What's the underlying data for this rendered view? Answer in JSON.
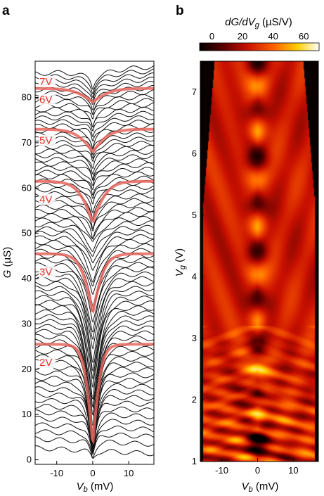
{
  "chart_data": [
    {
      "type": "line",
      "panel_label": "a",
      "xlabel_main": "V",
      "xlabel_sub": "b",
      "xlabel_unit": " (mV)",
      "ylabel_main": "G",
      "ylabel_unit": " (µS)",
      "xlim": [
        -16,
        17
      ],
      "ylim": [
        -1,
        88
      ],
      "x_ticks": [
        -10,
        0,
        10
      ],
      "y_ticks": [
        0,
        10,
        20,
        30,
        40,
        50,
        60,
        70,
        80
      ],
      "highlight_labels": [
        {
          "text": "7V",
          "g": 83.5
        },
        {
          "text": "6V",
          "g": 79.5
        },
        {
          "text": "5V",
          "g": 70.5
        },
        {
          "text": "4V",
          "g": 57.5
        },
        {
          "text": "3V",
          "g": 41.5
        },
        {
          "text": "2V",
          "g": 21.5
        }
      ],
      "highlight_curves": [
        {
          "g_edge": 82.0,
          "dip": 3
        },
        {
          "g_edge": 73.0,
          "dip": 5
        },
        {
          "g_edge": 61.5,
          "dip": 9
        },
        {
          "g_edge": 45.5,
          "dip": 13
        },
        {
          "g_edge": 25.5,
          "dip": 22
        }
      ],
      "curve_count": 80,
      "highlight_color": "#e8665e",
      "line_color": "#111111"
    },
    {
      "type": "heatmap",
      "panel_label": "b",
      "colorbar_title_main": "dG/dV",
      "colorbar_title_sub": "g",
      "colorbar_title_unit": " (µS/V)",
      "colorbar_ticks": [
        0,
        20,
        40,
        60
      ],
      "colorbar_range": [
        -8,
        70
      ],
      "xlabel_main": "V",
      "xlabel_sub": "b",
      "xlabel_unit": " (mV)",
      "ylabel_main": "V",
      "ylabel_sub": "g",
      "ylabel_unit": " (V)",
      "xlim": [
        -16,
        17
      ],
      "ylim": [
        1,
        7.5
      ],
      "x_ticks": [
        -10,
        0,
        10
      ],
      "y_ticks": [
        1,
        2,
        3,
        4,
        5,
        6,
        7
      ],
      "colormap": "hot",
      "colormap_stops": [
        "#000000",
        "#5a0000",
        "#c81000",
        "#ff6000",
        "#ffd000",
        "#ffffff"
      ]
    }
  ]
}
